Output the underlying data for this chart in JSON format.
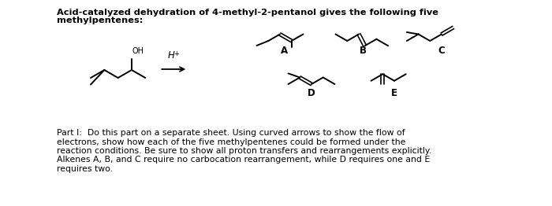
{
  "title_line1": "Acid-catalyzed dehydration of 4-methyl-2-pentanol gives the following five",
  "title_line2": "methylpentenes:",
  "bg_color": "#ffffff",
  "text_color": "#000000",
  "part_text_lines": [
    "Part I:  Do this part on a separate sheet. Using curved arrows to show the flow of",
    "electrons, show how each of the five methylpentenes could be formed under the",
    "reaction conditions. Be sure to show all proton transfers and rearrangements explicitly.",
    "Alkenes A, B, and C require no carbocation rearrangement, while D requires one and E",
    "requires two."
  ],
  "label_A": "A",
  "label_B": "B",
  "label_C": "C",
  "label_D": "D",
  "label_E": "E"
}
